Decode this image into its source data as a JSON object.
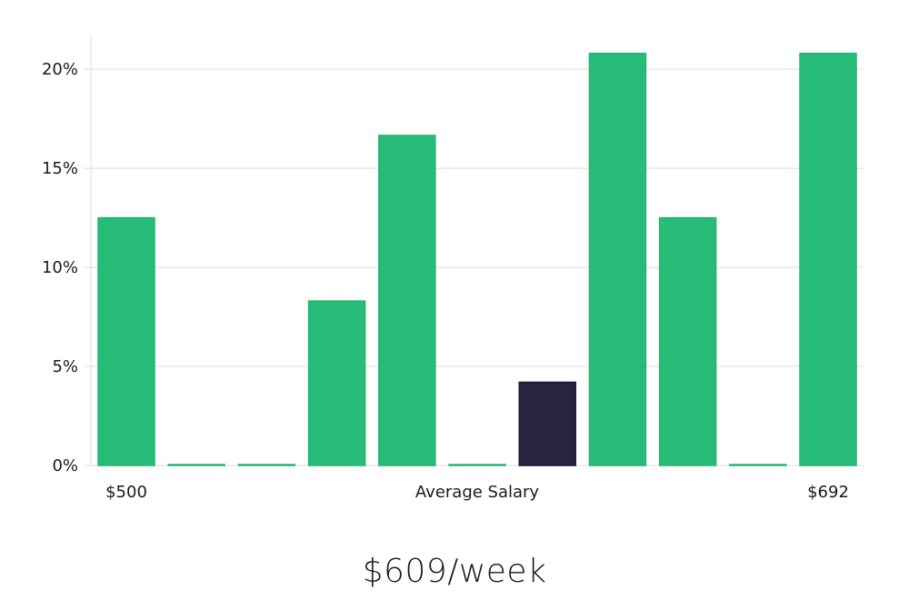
{
  "headline": "$609/week",
  "chart_data": {
    "type": "bar",
    "title": "",
    "xlabel": "Average Salary",
    "ylabel": "",
    "x_min_label": "$500",
    "x_max_label": "$692",
    "ylim": [
      0,
      0.2166
    ],
    "yticks": [
      0,
      0.05,
      0.1,
      0.15,
      0.2
    ],
    "ytick_labels": [
      "0%",
      "5%",
      "10%",
      "15%",
      "20%"
    ],
    "grid": true,
    "values": [
      0.125,
      0,
      0,
      0.083,
      0.1666,
      0,
      0.042,
      0.208,
      0.125,
      0,
      0.208
    ],
    "highlight_index": 6,
    "colors": {
      "bar": "#27bd78",
      "highlight": "#28233f",
      "grid": "#dcdcdc"
    }
  }
}
